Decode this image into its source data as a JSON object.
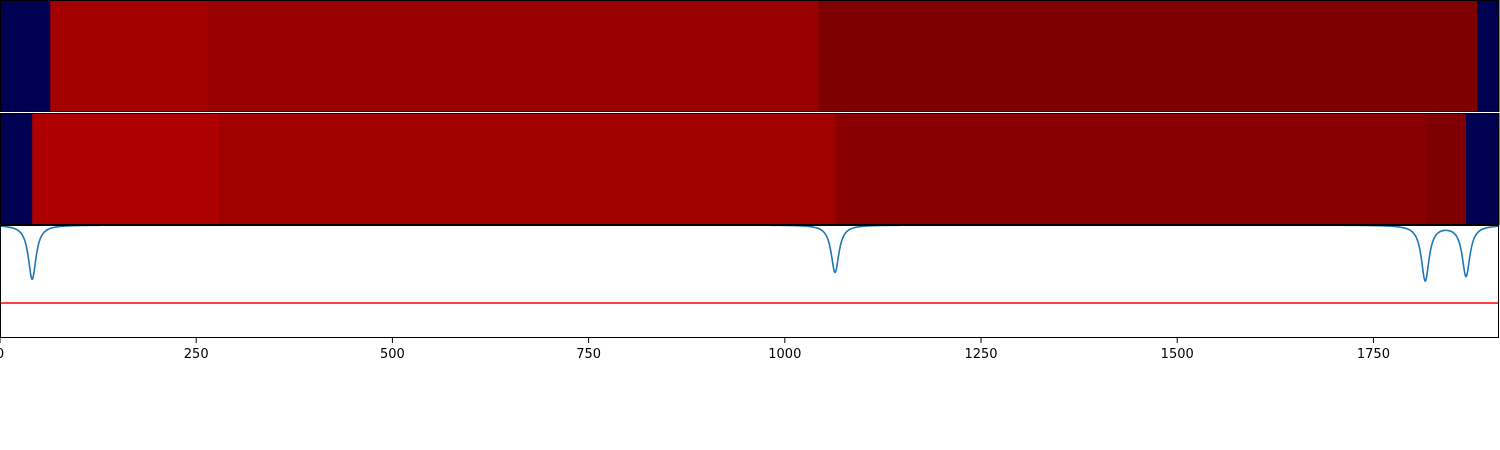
{
  "colors": {
    "track_edge": "#000050",
    "signal_line": "#1f77b4",
    "threshold_line": "#ff0000",
    "frame": "#000000",
    "background": "#ffffff"
  },
  "chart_data": {
    "type": "heatmap",
    "xlim": [
      0,
      1910
    ],
    "xticks": [
      {
        "value": 0,
        "label": "0"
      },
      {
        "value": 250,
        "label": "250"
      },
      {
        "value": 500,
        "label": "500"
      },
      {
        "value": 750,
        "label": "750"
      },
      {
        "value": 1000,
        "label": "1000"
      },
      {
        "value": 1250,
        "label": "1250"
      },
      {
        "value": 1500,
        "label": "1500"
      },
      {
        "value": 1750,
        "label": "1750"
      }
    ],
    "tracks": [
      {
        "segments": [
          {
            "start": 0,
            "end": 64,
            "color": "#000050"
          },
          {
            "start": 64,
            "end": 265,
            "color": "#a50000"
          },
          {
            "start": 265,
            "end": 1043,
            "color": "#990000"
          },
          {
            "start": 1043,
            "end": 1882,
            "color": "#7f0000"
          },
          {
            "start": 1882,
            "end": 1910,
            "color": "#000050"
          }
        ]
      },
      {
        "segments": [
          {
            "start": 0,
            "end": 41,
            "color": "#000050"
          },
          {
            "start": 41,
            "end": 279,
            "color": "#ae0000"
          },
          {
            "start": 279,
            "end": 1064,
            "color": "#a10000"
          },
          {
            "start": 1064,
            "end": 1816,
            "color": "#8a0000"
          },
          {
            "start": 1816,
            "end": 1868,
            "color": "#7f0000"
          },
          {
            "start": 1868,
            "end": 1910,
            "color": "#000050"
          }
        ]
      }
    ],
    "signal": {
      "ylim": [
        0,
        1
      ],
      "baseline": 1.0,
      "threshold": 0.31,
      "dips": [
        {
          "x": 41,
          "depth": 0.48
        },
        {
          "x": 1064,
          "depth": 0.42
        },
        {
          "x": 1816,
          "depth": 0.49
        },
        {
          "x": 1868,
          "depth": 0.45
        }
      ]
    }
  }
}
